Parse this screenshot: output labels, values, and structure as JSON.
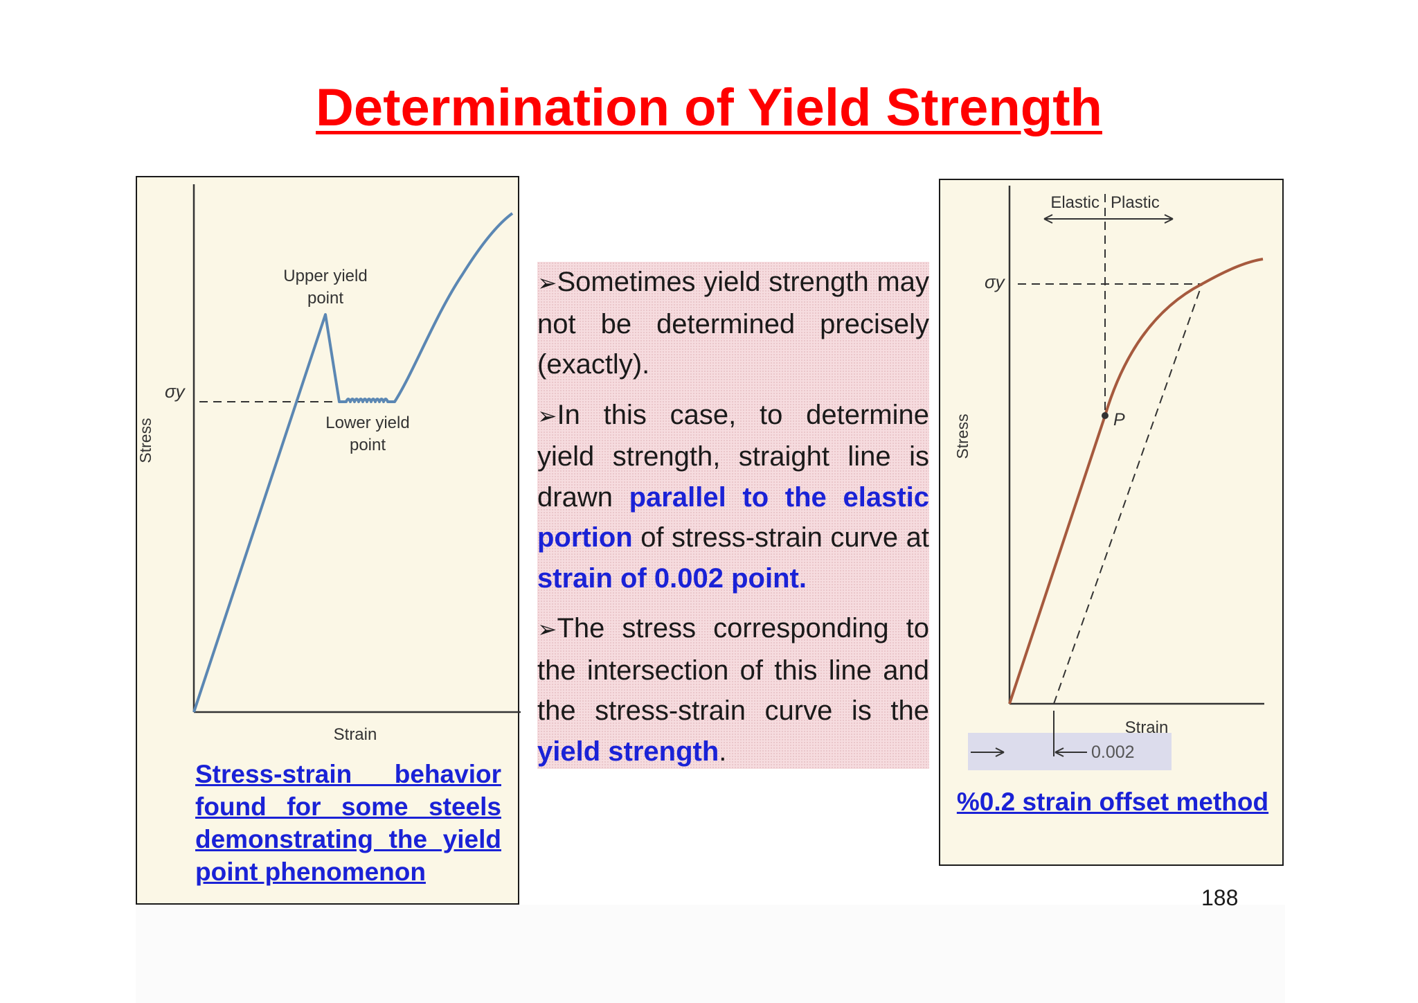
{
  "title": "Determination of Yield Strength",
  "page_number": "188",
  "left_figure": {
    "y_axis_label": "Stress",
    "x_axis_label": "Strain",
    "sigma_label": "σy",
    "upper_yield_line1": "Upper yield",
    "upper_yield_line2": "point",
    "lower_yield_line1": "Lower yield",
    "lower_yield_line2": "point",
    "caption": "Stress-strain behavior found for some steels demonstrating the yield point phenomenon",
    "curve_color": "#5b87b3"
  },
  "right_figure": {
    "y_axis_label": "Stress",
    "x_axis_label": "Strain",
    "sigma_label": "σy",
    "elastic_label": "Elastic",
    "plastic_label": "Plastic",
    "point_label": "P",
    "offset_label": "0.002",
    "caption": "%0.2 strain offset method",
    "curve_color": "#a65a3e"
  },
  "text": {
    "p1": "Sometimes yield strength may not be determined precisely (exactly).",
    "p2_a": "In this case, to determine yield strength, straight line is drawn ",
    "p2_b": "parallel to the elastic portion",
    "p2_c": " of stress-strain curve at ",
    "p2_d": "strain of 0.002 point.",
    "p3_a": "The stress corresponding to the intersection of this line and the stress-strain curve is the ",
    "p3_b": "yield strength",
    "p3_c": ".",
    "bullet": "➢"
  },
  "colors": {
    "title": "#ff0000",
    "highlight": "#1a22d6",
    "textbox_bg": "#f6dcdf"
  }
}
